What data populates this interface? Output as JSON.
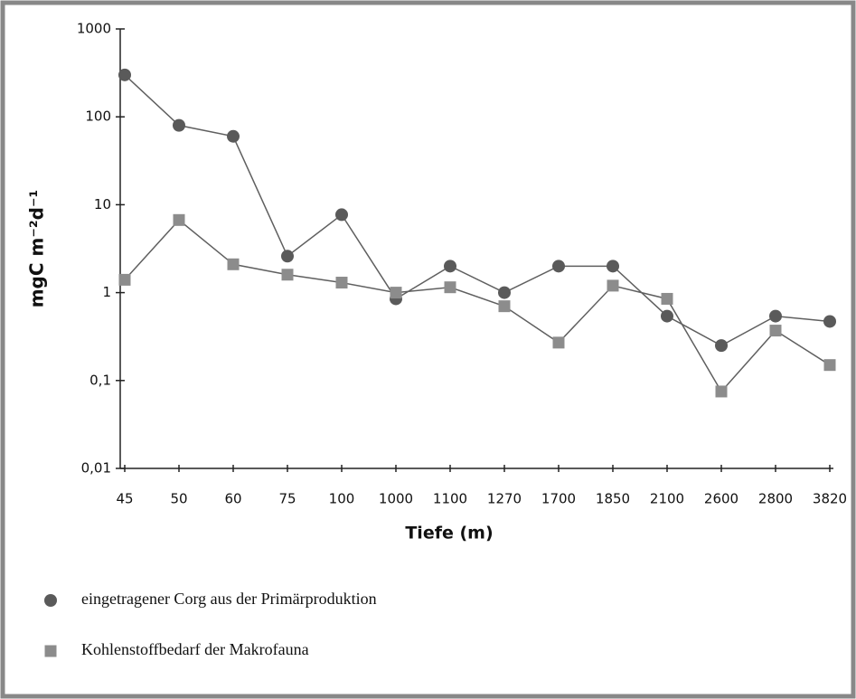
{
  "chart_data": {
    "type": "line",
    "xlabel": "Tiefe (m)",
    "ylabel": "mgC m⁻²d⁻¹",
    "categories": [
      "45",
      "50",
      "60",
      "75",
      "100",
      "1000",
      "1100",
      "1270",
      "1700",
      "1850",
      "2100",
      "2600",
      "2800",
      "3820"
    ],
    "ylim": [
      0.01,
      1000
    ],
    "yticks": [
      {
        "value": 0.01,
        "label": "0,01"
      },
      {
        "value": 0.1,
        "label": "0,1"
      },
      1,
      10,
      100,
      1000
    ],
    "log_y": true,
    "legend": "bottom-left",
    "series": [
      {
        "name": "eingetragener Corg aus der Primärproduktion",
        "color": "#5a5a5a",
        "marker": "circle",
        "values": [
          300,
          80,
          60,
          2.6,
          7.7,
          0.85,
          2.0,
          1.0,
          2.0,
          2.0,
          0.54,
          0.25,
          0.54,
          0.47
        ]
      },
      {
        "name": "Kohlenstoffbedarf der Makrofauna",
        "color": "#8c8c8c",
        "marker": "square",
        "values": [
          1.4,
          6.7,
          2.1,
          1.6,
          1.3,
          1.0,
          1.15,
          0.7,
          0.27,
          1.2,
          0.85,
          0.075,
          0.37,
          0.15
        ]
      }
    ]
  }
}
